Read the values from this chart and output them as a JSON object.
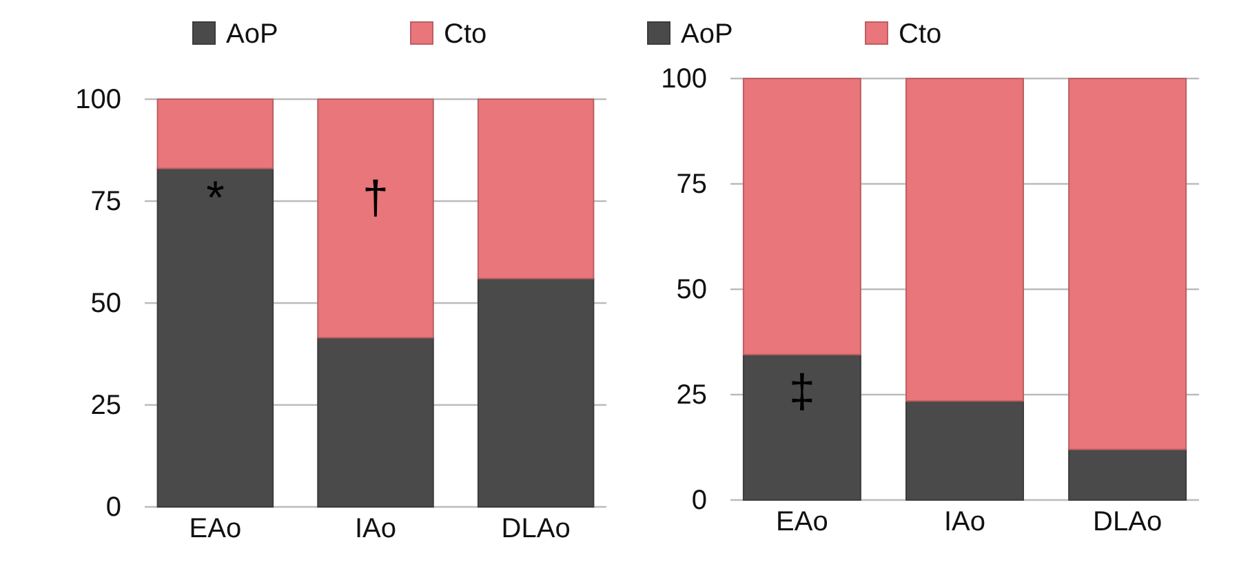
{
  "chart_data": [
    {
      "type": "bar",
      "stacked": true,
      "categories": [
        "EAo",
        "IAo",
        "DLAo"
      ],
      "series": [
        {
          "name": "AoP",
          "color": "#4a4a4a",
          "values": [
            83,
            41.5,
            56
          ]
        },
        {
          "name": "Cto",
          "color": "#e8767a",
          "values": [
            17,
            58.5,
            44
          ]
        }
      ],
      "ylim": [
        0,
        100
      ],
      "yticks": [
        0,
        25,
        50,
        75,
        100
      ],
      "grid": "y",
      "legend": "top",
      "annotations": [
        "*",
        "†"
      ]
    },
    {
      "type": "bar",
      "stacked": true,
      "categories": [
        "EAo",
        "IAo",
        "DLAo"
      ],
      "series": [
        {
          "name": "AoP",
          "color": "#4a4a4a",
          "values": [
            34.5,
            23.5,
            12
          ]
        },
        {
          "name": "Cto",
          "color": "#e8767a",
          "values": [
            65.5,
            76.5,
            88
          ]
        }
      ],
      "ylim": [
        0,
        100
      ],
      "yticks": [
        0,
        25,
        50,
        75,
        100
      ],
      "grid": "y",
      "legend": "top",
      "annotations": [
        "‡"
      ]
    }
  ]
}
